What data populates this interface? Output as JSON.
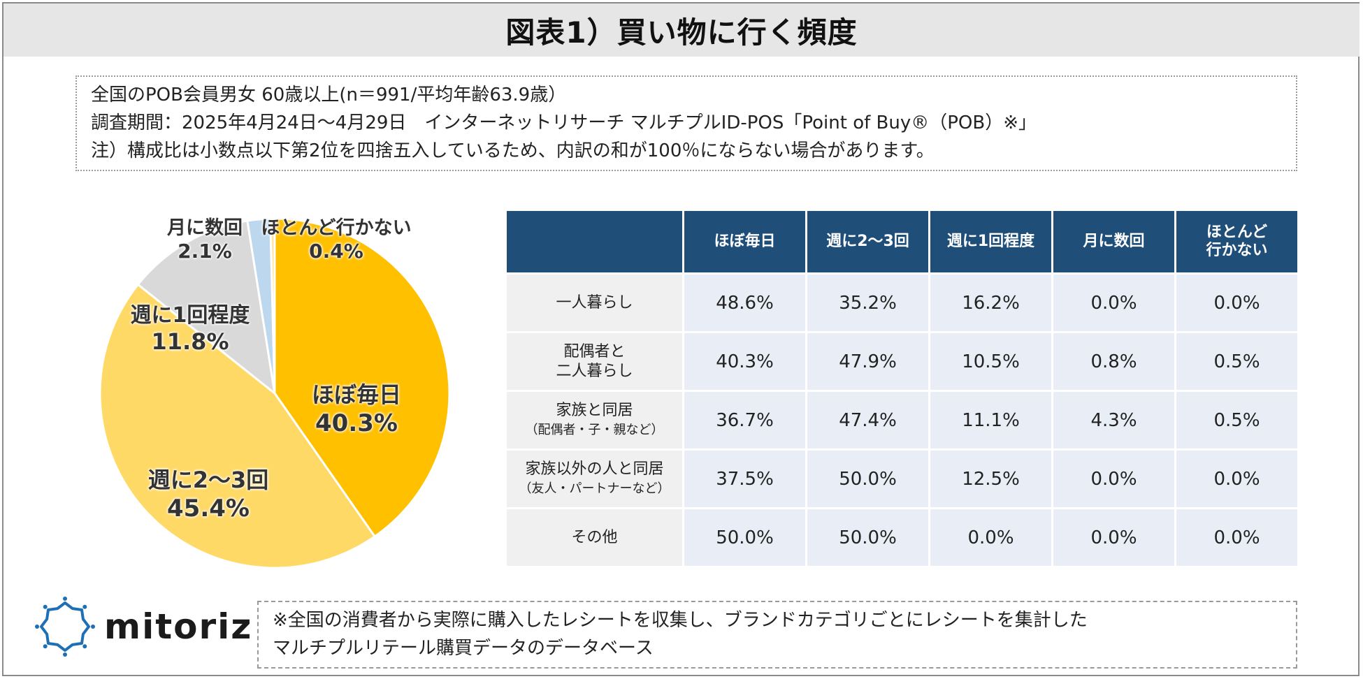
{
  "title": "図表1）買い物に行く頻度",
  "info": {
    "line1": "全国のPOB会員男女 60歳以上(n＝991/平均年齢63.9歳）",
    "line2": "調査期間：2025年4月24日～4月29日　インターネットリサーチ マルチプルID-POS「Point of Buy®（POB）※」",
    "line3": "注）構成比は小数点以下第2位を四捨五入しているため、内訳の和が100％にならない場合があります。"
  },
  "chart_data": [
    {
      "type": "pie",
      "slices": [
        {
          "label": "ほぼ毎日",
          "value": 40.3,
          "display": "40.3%",
          "color": "#ffc000"
        },
        {
          "label": "週に2～3回",
          "value": 45.4,
          "display": "45.4%",
          "color": "#ffd966"
        },
        {
          "label": "週に1回程度",
          "value": 11.8,
          "display": "11.8%",
          "color": "#d9d9d9"
        },
        {
          "label": "月に数回",
          "value": 2.1,
          "display": "2.1%",
          "color": "#bdd7ee"
        },
        {
          "label": "ほとんど行かない",
          "value": 0.4,
          "display": "0.4%",
          "color": "#ffe699"
        }
      ],
      "start": "top",
      "direction": "clockwise"
    },
    {
      "type": "table",
      "columns": [
        "",
        "ほぼ毎日",
        "週に2～3回",
        "週に1回程度",
        "月に数回",
        "ほとんど|行かない"
      ],
      "rows": [
        {
          "label": "一人暮らし",
          "sub": "",
          "values": [
            "48.6%",
            "35.2%",
            "16.2%",
            "0.0%",
            "0.0%"
          ]
        },
        {
          "label": "配偶者と|二人暮らし",
          "sub": "",
          "values": [
            "40.3%",
            "47.9%",
            "10.5%",
            "0.8%",
            "0.5%"
          ]
        },
        {
          "label": "家族と同居",
          "sub": "（配偶者・子・親など）",
          "values": [
            "36.7%",
            "47.4%",
            "11.1%",
            "4.3%",
            "0.5%"
          ]
        },
        {
          "label": "家族以外の人と同居",
          "sub": "（友人・パートナーなど）",
          "values": [
            "37.5%",
            "50.0%",
            "12.5%",
            "0.0%",
            "0.0%"
          ]
        },
        {
          "label": "その他",
          "sub": "",
          "values": [
            "50.0%",
            "50.0%",
            "0.0%",
            "0.0%",
            "0.0%"
          ]
        }
      ]
    }
  ],
  "logo": {
    "text": "mitoriz",
    "icon": "sparkle-ring-icon",
    "color": "#1f6fb5"
  },
  "note": {
    "line1": "※全国の消費者から実際に購入したレシートを収集し、ブランドカテゴリごとにレシートを集計した",
    "line2": "マルチプルリテール購買データのデータベース"
  }
}
